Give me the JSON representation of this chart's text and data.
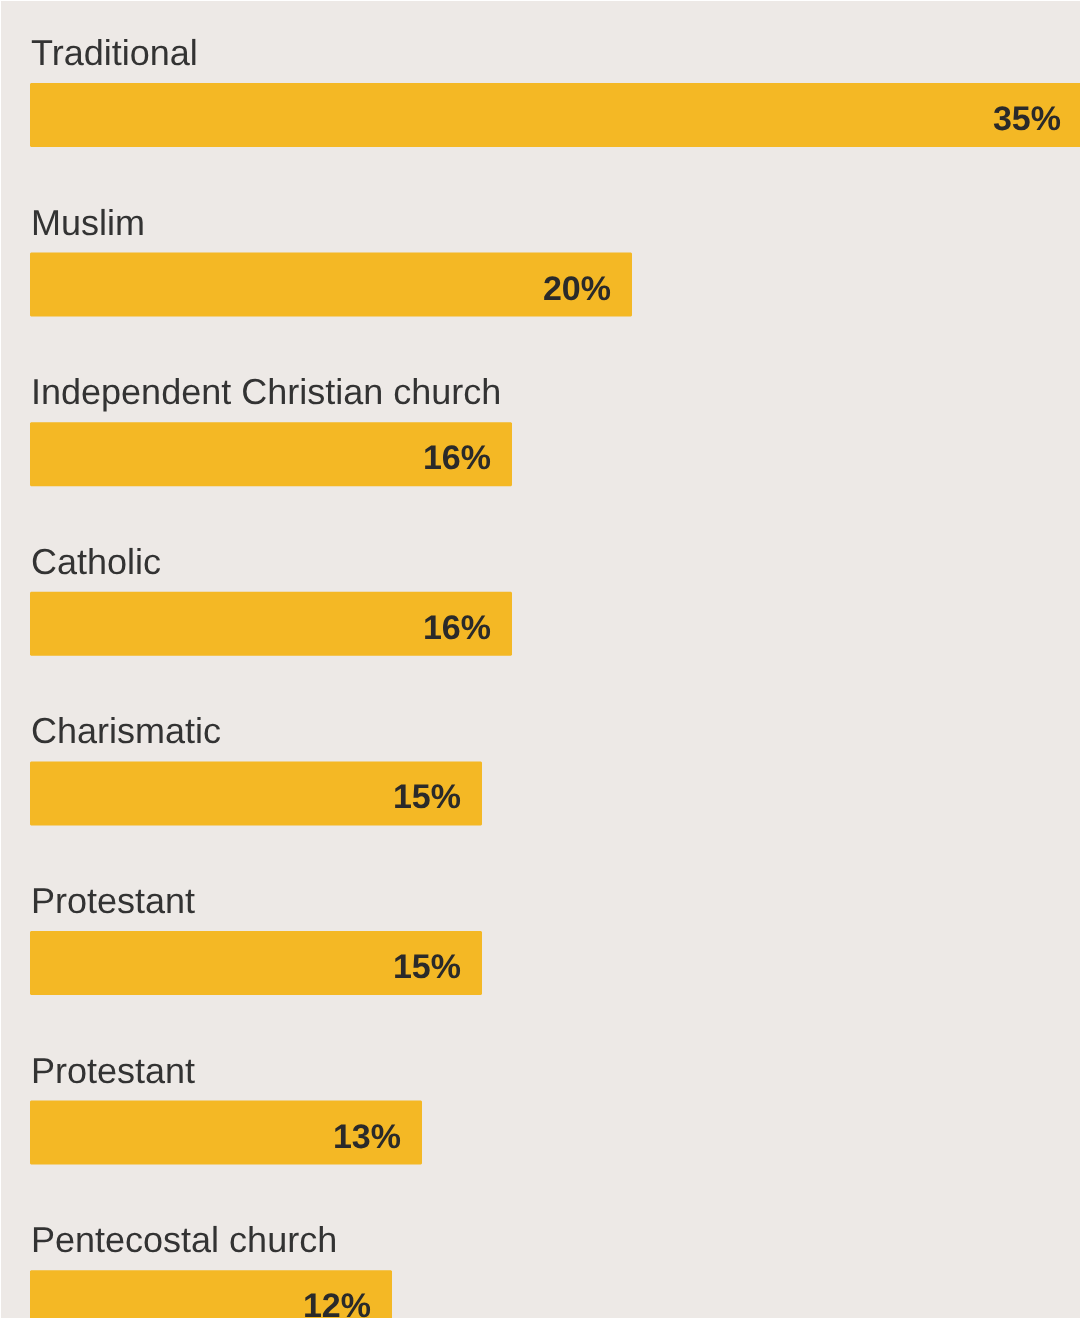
{
  "chart_data": {
    "type": "bar",
    "orientation": "horizontal",
    "categories": [
      "Traditional",
      "Muslim",
      "Independent Christian church",
      "Catholic",
      "Charismatic",
      "Protestant",
      "Protestant",
      "Pentecostal church"
    ],
    "values": [
      35,
      20,
      16,
      16,
      15,
      15,
      13,
      12
    ],
    "value_labels": [
      "35%",
      "20%",
      "16%",
      "16%",
      "15%",
      "15%",
      "13%",
      "12%"
    ],
    "color": "#f4b825"
  }
}
